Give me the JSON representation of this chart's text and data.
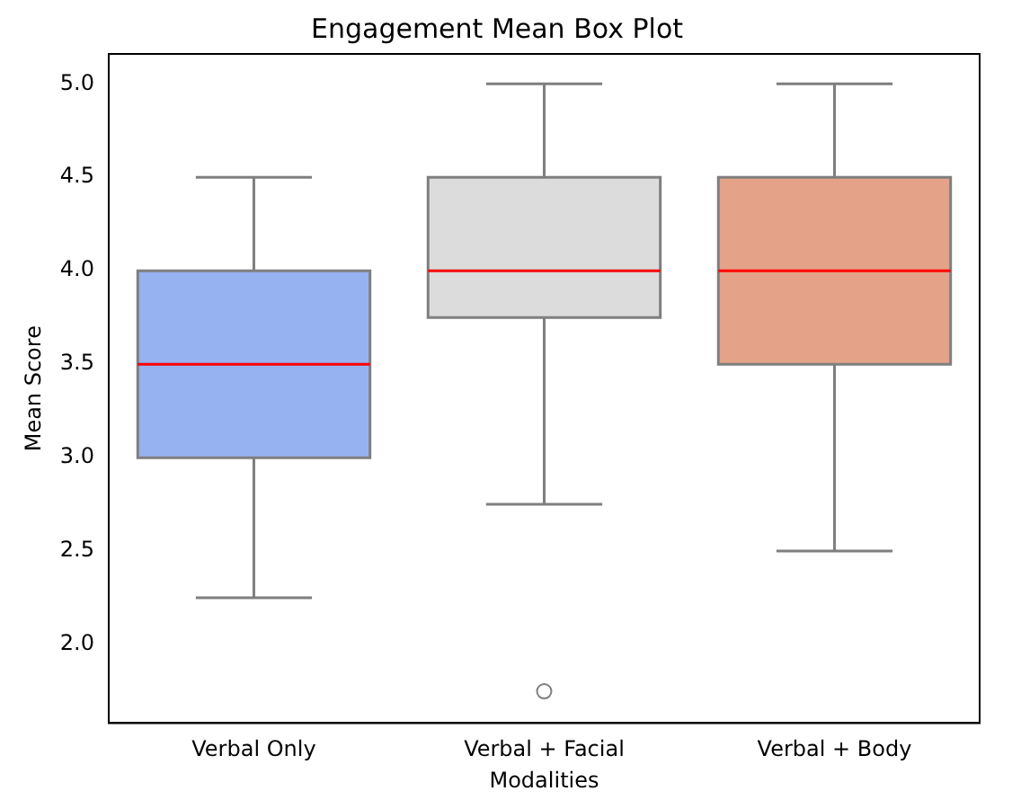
{
  "chart_data": {
    "type": "box",
    "title": "Engagement Mean Box Plot",
    "xlabel": "Modalities",
    "ylabel": "Mean Score",
    "categories": [
      "Verbal Only",
      "Verbal + Facial",
      "Verbal + Body"
    ],
    "colors": [
      "#97b2f0",
      "#dcdcdc",
      "#e4a288"
    ],
    "boxes": [
      {
        "low": 2.25,
        "q1": 3.0,
        "median": 3.5,
        "q3": 4.0,
        "high": 4.5
      },
      {
        "low": 2.75,
        "q1": 3.75,
        "median": 4.0,
        "q3": 4.5,
        "high": 5.0,
        "outliers": [
          1.75
        ]
      },
      {
        "low": 2.5,
        "q1": 3.5,
        "median": 4.0,
        "q3": 4.5,
        "high": 5.0
      }
    ],
    "ylim": [
      1.58,
      5.16
    ],
    "yticks": [
      {
        "value": 2,
        "label": "2.0"
      },
      {
        "value": 2.5,
        "label": "2.5"
      },
      {
        "value": 3,
        "label": "3.0"
      },
      {
        "value": 3.5,
        "label": "3.5"
      },
      {
        "value": 4,
        "label": "4.0"
      },
      {
        "value": 4.5,
        "label": "4.5"
      },
      {
        "value": 5,
        "label": "5.0"
      }
    ]
  }
}
